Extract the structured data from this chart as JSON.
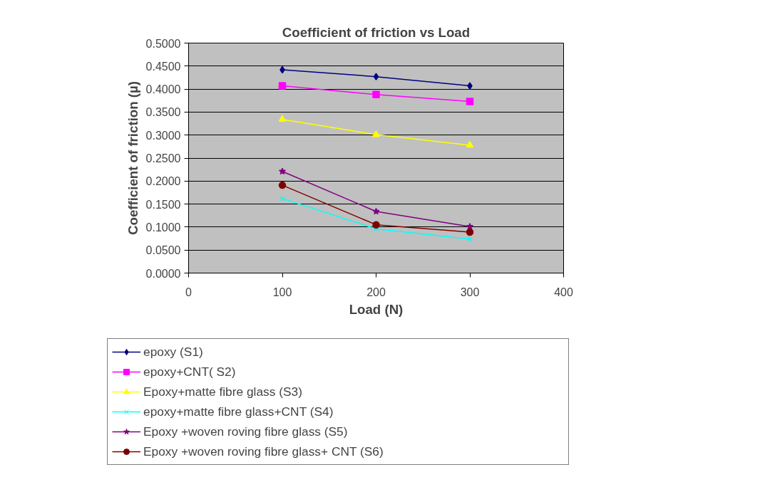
{
  "chart_data": {
    "type": "line",
    "title": "Coefficient of friction vs Load",
    "xlabel": "Load (N)",
    "ylabel": "Coefficient of friction (µ)",
    "x": [
      100,
      200,
      300
    ],
    "xlim": [
      0,
      400
    ],
    "xticks": [
      0,
      100,
      200,
      300,
      400
    ],
    "ylim": [
      0,
      0.5
    ],
    "yticks": [
      {
        "value": 0,
        "label": "0.0000"
      },
      {
        "value": 0.05,
        "label": "0.0500"
      },
      {
        "value": 0.1,
        "label": "0.1000"
      },
      {
        "value": 0.15,
        "label": "0.1500"
      },
      {
        "value": 0.2,
        "label": "0.2000"
      },
      {
        "value": 0.25,
        "label": "0.2500"
      },
      {
        "value": 0.3,
        "label": "0.3000"
      },
      {
        "value": 0.35,
        "label": "0.3500"
      },
      {
        "value": 0.4,
        "label": "0.4000"
      },
      {
        "value": 0.45,
        "label": "0.4500"
      },
      {
        "value": 0.5,
        "label": "0.5000"
      }
    ],
    "grid": "y",
    "legend": "bottom",
    "series": [
      {
        "name": "epoxy (S1)",
        "color": "#000080",
        "marker": "diamond",
        "values": [
          0.442,
          0.427,
          0.407
        ]
      },
      {
        "name": "epoxy+CNT( S2)",
        "color": "#ff00ff",
        "marker": "square",
        "values": [
          0.407,
          0.388,
          0.373
        ]
      },
      {
        "name": "Epoxy+matte fibre glass (S3)",
        "color": "#ffff00",
        "marker": "triangle",
        "values": [
          0.334,
          0.301,
          0.278
        ]
      },
      {
        "name": "epoxy+matte fibre glass+CNT (S4)",
        "color": "#00ffff",
        "marker": "cross",
        "values": [
          0.162,
          0.096,
          0.074
        ]
      },
      {
        "name": "Epoxy +woven roving fibre glass (S5)",
        "color": "#800080",
        "marker": "star",
        "values": [
          0.221,
          0.134,
          0.101
        ]
      },
      {
        "name": "Epoxy +woven roving fibre glass+ CNT (S6)",
        "color": "#800000",
        "marker": "circle",
        "values": [
          0.191,
          0.105,
          0.089
        ]
      }
    ]
  }
}
